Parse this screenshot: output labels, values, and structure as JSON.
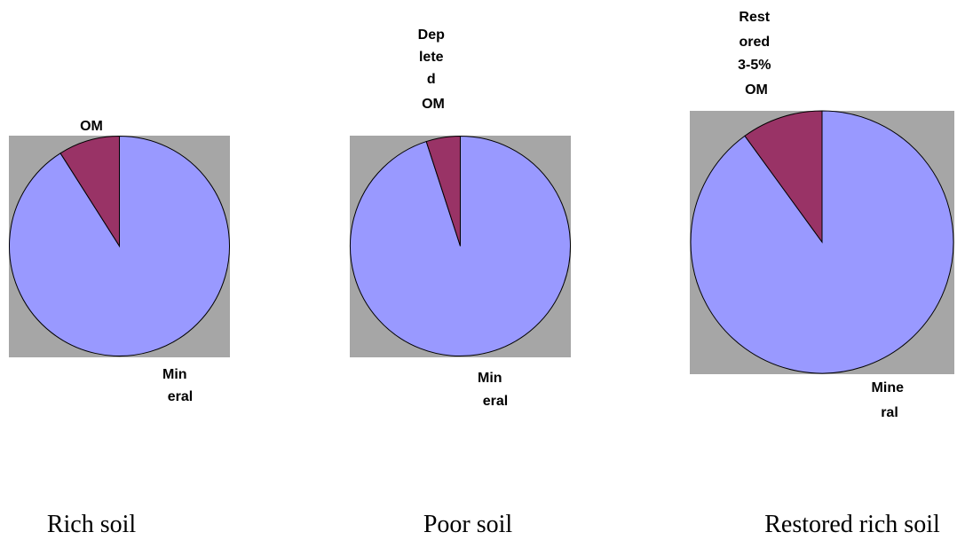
{
  "colors": {
    "background_panel": "#a6a6a6",
    "mineral": "#9999ff",
    "om": "#993366"
  },
  "chart_data": [
    {
      "type": "pie",
      "caption": "Rich soil",
      "slices": [
        {
          "label": "OM",
          "label_lines": [
            "OM"
          ],
          "value": 9
        },
        {
          "label": "Mineral",
          "label_lines": [
            "Min",
            "eral"
          ],
          "value": 91
        }
      ]
    },
    {
      "type": "pie",
      "caption": "Poor soil",
      "slices": [
        {
          "label": "Depleted OM",
          "label_lines": [
            "Dep",
            "lete",
            "d",
            "OM"
          ],
          "value": 5
        },
        {
          "label": "Mineral",
          "label_lines": [
            "Min",
            "eral"
          ],
          "value": 95
        }
      ]
    },
    {
      "type": "pie",
      "caption": "Restored rich soil",
      "slices": [
        {
          "label": "Restored 3-5% OM",
          "label_lines": [
            "Rest",
            "ored",
            "3-5%",
            "OM"
          ],
          "value": 10
        },
        {
          "label": "Mineral",
          "label_lines": [
            "Mine",
            "ral"
          ],
          "value": 90
        }
      ]
    }
  ]
}
